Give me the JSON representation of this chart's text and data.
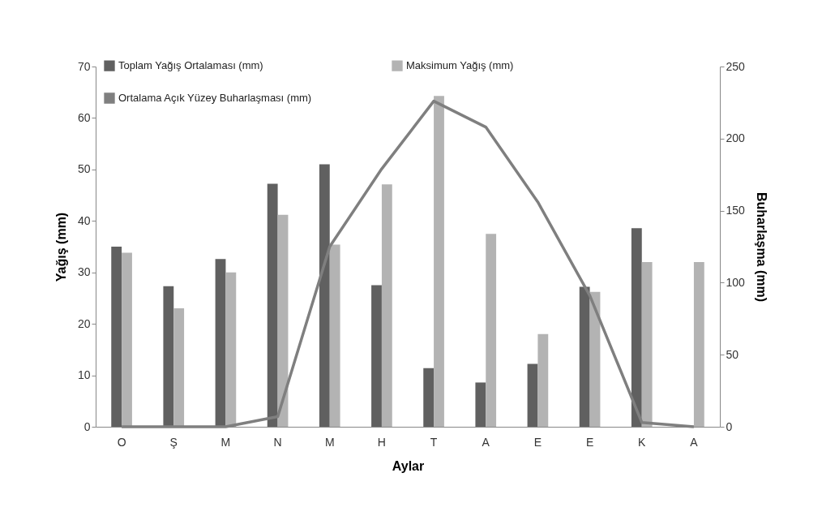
{
  "chart_data": {
    "type": "bar",
    "xlabel": "Aylar",
    "ylabel": "Yağış (mm)",
    "y2label": "Buharlaşma (mm)",
    "categories": [
      "O",
      "Ş",
      "M",
      "N",
      "M",
      "H",
      "T",
      "A",
      "E",
      "E",
      "K",
      "A"
    ],
    "series": [
      {
        "name": "Toplam Yağış Ortalaması (mm)",
        "color": "#606060",
        "values": [
          35,
          27.3,
          32.6,
          47.2,
          51,
          27.5,
          11.4,
          8.6,
          12.2,
          27.2,
          38.6,
          null
        ]
      },
      {
        "name": "Maksimum Yağış (mm)",
        "color": "#b3b3b3",
        "values": [
          33.8,
          23,
          30,
          41.2,
          35.4,
          47.1,
          64.3,
          37.5,
          18,
          26.2,
          32,
          32
        ]
      },
      {
        "name": "Ortalama Açık Yüzey Buharlaşması (mm)",
        "color": "#7f7f7f",
        "type": "line",
        "axis": "y2",
        "values": [
          0,
          0,
          0,
          7,
          125,
          179,
          226,
          208,
          156,
          91,
          3,
          0
        ]
      }
    ],
    "ylim": [
      0,
      70
    ],
    "yticks": [
      0,
      10,
      20,
      30,
      40,
      50,
      60,
      70
    ],
    "y2lim": [
      0,
      250
    ],
    "y2ticks": [
      0,
      50,
      100,
      150,
      200,
      250
    ],
    "grid": false,
    "legend": "top left"
  }
}
